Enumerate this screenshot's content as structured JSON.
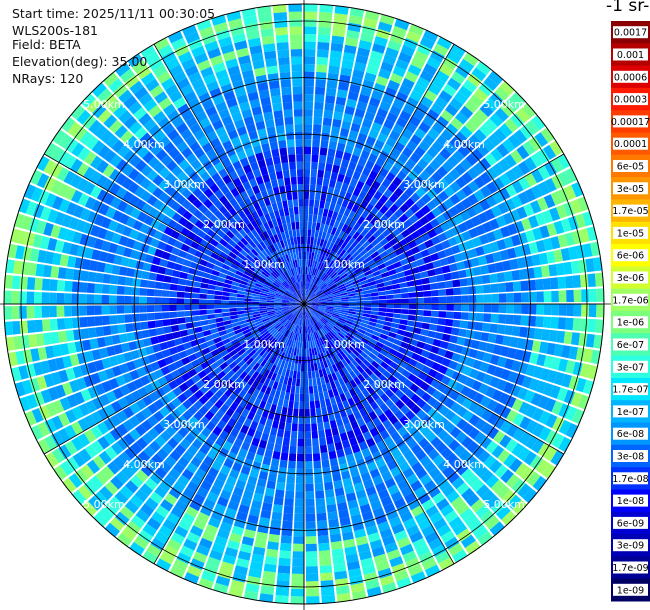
{
  "info": {
    "start_time": "Start time: 2025/11/11 00:30:05",
    "instrument": "WLS200s-181",
    "field": "Field: BETA",
    "elevation": "Elevation(deg): 35.00",
    "nrays": "NRays: 120"
  },
  "colorbar": {
    "title": "-1 sr-",
    "labels": [
      "0.0017",
      "0.001",
      "0.0006",
      "0.0003",
      "0.00017",
      "0.0001",
      "6e-05",
      "3e-05",
      "1.7e-05",
      "1e-05",
      "6e-06",
      "3e-06",
      "1.7e-06",
      "1e-06",
      "6e-07",
      "3e-07",
      "1.7e-07",
      "1e-07",
      "6e-08",
      "3e-08",
      "1.7e-08",
      "1e-08",
      "6e-09",
      "3e-09",
      "1.7e-09",
      "1e-09"
    ],
    "colors": [
      "#8b0000",
      "#b40000",
      "#dd0000",
      "#ff1a00",
      "#ff3c00",
      "#ff5a00",
      "#ff7800",
      "#ff9600",
      "#ffb400",
      "#ffe000",
      "#ffff00",
      "#d2ff2e",
      "#a0ff64",
      "#7cff7c",
      "#4dffb0",
      "#2effe0",
      "#00e6ff",
      "#00b4ff",
      "#0096ff",
      "#0064ff",
      "#0032ff",
      "#0000ff",
      "#0000d2",
      "#0000b4",
      "#000096",
      "#000064"
    ]
  },
  "chart_data": {
    "type": "heatmap",
    "projection": "polar PPI scan",
    "nrays": 120,
    "elevation_deg": 35.0,
    "range_rings": [
      "1.00km",
      "2.00km",
      "3.00km",
      "4.00km",
      "5.00km"
    ],
    "max_range_km": 5.3,
    "field": "BETA",
    "color_scale": "log, 1e-09 to 0.0017",
    "value_by_range": [
      {
        "range_km": 0.5,
        "beta": 1e-08
      },
      {
        "range_km": 1.5,
        "beta": 3e-08
      },
      {
        "range_km": 2.5,
        "beta": 6e-08
      },
      {
        "range_km": 3.5,
        "beta": 6e-08
      },
      {
        "range_km": 4.5,
        "beta": 1e-07
      },
      {
        "range_km": 5.0,
        "beta": 1.7e-07
      }
    ],
    "grid": true
  }
}
